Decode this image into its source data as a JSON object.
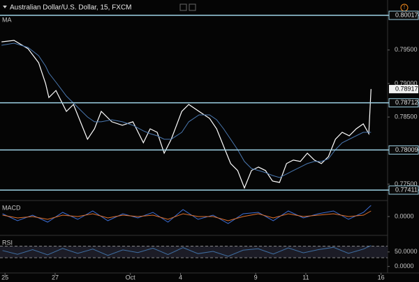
{
  "chart_data": [
    {
      "type": "line",
      "title": "Australian Dollar/U.S. Dollar, 15, FXCM",
      "indicator": "MA",
      "x": [
        -0.14,
        0.36,
        0.92,
        1.34,
        1.62,
        1.75,
        2.03,
        2.45,
        2.73,
        3.01,
        3.29,
        3.57,
        3.84,
        4.26,
        4.68,
        5.1,
        5.52,
        5.79,
        6.07,
        6.35,
        6.63,
        7.05,
        7.33,
        7.74,
        8.16,
        8.44,
        8.72,
        9.0,
        9.28,
        9.55,
        9.83,
        10.11,
        10.39,
        10.67,
        10.95,
        11.23,
        11.5,
        11.78,
        12.06,
        12.34,
        12.62,
        12.9,
        13.18,
        13.45,
        13.73,
        14.01,
        14.29,
        14.51,
        14.6
      ],
      "series": [
        {
          "color": "#ffffff",
          "values": [
            0.79622,
            0.79643,
            0.79519,
            0.79311,
            0.78999,
            0.78791,
            0.78896,
            0.78584,
            0.78688,
            0.78429,
            0.78169,
            0.78325,
            0.78584,
            0.78429,
            0.78377,
            0.78429,
            0.78117,
            0.78325,
            0.78273,
            0.77961,
            0.78169,
            0.78584,
            0.78688,
            0.78584,
            0.7848,
            0.78325,
            0.78065,
            0.77806,
            0.77702,
            0.77442,
            0.77702,
            0.77754,
            0.77702,
            0.77546,
            0.77525,
            0.77806,
            0.77858,
            0.77837,
            0.77961,
            0.77858,
            0.77806,
            0.7791,
            0.78169,
            0.78273,
            0.78221,
            0.78325,
            0.78398,
            0.78252,
            0.78917
          ]
        },
        {
          "color": "#4a78b0",
          "values": [
            0.79571,
            0.79602,
            0.79539,
            0.79415,
            0.79259,
            0.79155,
            0.7902,
            0.78813,
            0.78709,
            0.78605,
            0.78501,
            0.78429,
            0.78429,
            0.7846,
            0.78429,
            0.78377,
            0.78294,
            0.78252,
            0.78221,
            0.78169,
            0.78169,
            0.78273,
            0.78429,
            0.78532,
            0.78532,
            0.7846,
            0.78325,
            0.78169,
            0.78013,
            0.77837,
            0.77733,
            0.77702,
            0.77671,
            0.77629,
            0.77598,
            0.7765,
            0.77702,
            0.77754,
            0.77806,
            0.77837,
            0.77837,
            0.77878,
            0.78013,
            0.78117,
            0.78169,
            0.78221,
            0.78273,
            0.78273,
            0.78273
          ]
        }
      ],
      "xlim": [
        -0.2,
        15.26
      ],
      "xticks": [
        {
          "value": 0,
          "label": "25"
        },
        {
          "value": 2,
          "label": "27"
        },
        {
          "value": 5,
          "label": "Oct"
        },
        {
          "value": 7,
          "label": "4"
        },
        {
          "value": 10,
          "label": "9"
        },
        {
          "value": 12,
          "label": "11"
        },
        {
          "value": 15,
          "label": "16"
        }
      ],
      "ylim": [
        0.77286,
        0.80038
      ],
      "yticks": [
        {
          "value": 0.795,
          "label": "0.79500"
        },
        {
          "value": 0.79,
          "label": "0.79000"
        },
        {
          "value": 0.785,
          "label": "0.78500"
        },
        {
          "value": 0.775,
          "label": "0.77500"
        }
      ],
      "hlines": [
        0.80017,
        0.78712,
        0.78009,
        0.77411
      ],
      "hline_color": "#9fd3e6",
      "last_value": 0.78917
    },
    {
      "type": "line",
      "indicator": "MACD",
      "x": [
        -0.1,
        0.5,
        1.1,
        1.7,
        2.3,
        2.9,
        3.5,
        4.1,
        4.7,
        5.3,
        5.9,
        6.5,
        7.1,
        7.7,
        8.3,
        8.9,
        9.5,
        10.1,
        10.7,
        11.3,
        11.9,
        12.5,
        13.1,
        13.7,
        14.3,
        14.6
      ],
      "series": [
        {
          "color": "#3d6fd6",
          "values": [
            0.0002,
            -0.0003,
            0.0001,
            -0.0004,
            0.0003,
            -0.0002,
            0.0004,
            -0.0003,
            0.0002,
            -0.0001,
            0.0003,
            -0.0004,
            0.0005,
            -0.0002,
            0.0001,
            -0.0005,
            0.0002,
            0.0003,
            -0.0003,
            0.0004,
            -0.0001,
            0.0002,
            0.0004,
            -0.0002,
            0.0003,
            0.0008
          ]
        },
        {
          "color": "#e0702a",
          "values": [
            0.0001,
            -0.0001,
            0,
            -0.0002,
            0.0001,
            0,
            0.0002,
            -0.0001,
            0.0001,
            0,
            0.0001,
            -0.0002,
            0.0002,
            0,
            0,
            -0.0003,
            0,
            0.0002,
            -0.0001,
            0.0002,
            0,
            0.0001,
            0.0002,
            0,
            0.0001,
            0.0004
          ]
        }
      ],
      "ylim": [
        -0.00125,
        0.0011
      ],
      "yticks": [
        {
          "value": 0,
          "label": "0.0000"
        }
      ]
    },
    {
      "type": "line",
      "indicator": "RSI",
      "x": [
        -0.1,
        0.5,
        1.1,
        1.7,
        2.3,
        2.9,
        3.5,
        4.1,
        4.7,
        5.3,
        5.9,
        6.5,
        7.1,
        7.7,
        8.3,
        8.9,
        9.5,
        10.1,
        10.7,
        11.3,
        11.9,
        12.5,
        13.1,
        13.7,
        14.3,
        14.6
      ],
      "series": [
        {
          "color": "#3f6fa3",
          "values": [
            55,
            42,
            58,
            40,
            62,
            45,
            60,
            38,
            57,
            48,
            63,
            41,
            65,
            44,
            52,
            35,
            56,
            61,
            43,
            64,
            47,
            58,
            66,
            45,
            60,
            72
          ]
        }
      ],
      "ylim": [
        -20,
        100
      ],
      "yticks": [
        {
          "value": 50,
          "label": "50.0000"
        },
        {
          "value": 0,
          "label": "0.0000"
        }
      ],
      "bands": [
        70,
        30
      ]
    }
  ]
}
